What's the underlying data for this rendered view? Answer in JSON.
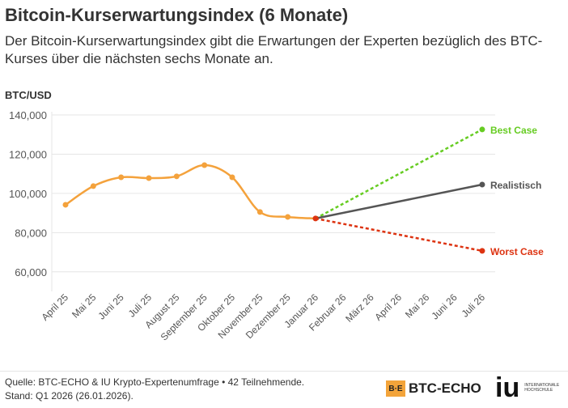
{
  "title": "Bitcoin-Kurserwartungsindex (6 Monate)",
  "subtitle": "Der Bitcoin-Kurserwartungsindex gibt die Erwartungen der Experten bezüglich des BTC-Kurses über die nächsten sechs Monate an.",
  "footer": {
    "source": "Quelle: BTC-ECHO & IU Krypto-Expertenumfrage • 42 Teilnehmende.",
    "date": "Stand: Q1 2026 (26.01.2026)."
  },
  "logos": {
    "btc_echo": "BTC-ECHO",
    "btc_mark": "B·E",
    "iu": "iu",
    "iu_text": "INTERNATIONALE HOCHSCHULE"
  },
  "chart_data": {
    "type": "line",
    "ylabel": "BTC/USD",
    "ylim": [
      50000,
      140000
    ],
    "yticks": [
      60000,
      80000,
      100000,
      120000,
      140000
    ],
    "ytick_labels": [
      "60,000",
      "80,000",
      "100,000",
      "120,000",
      "140,000"
    ],
    "grid": true,
    "categories": [
      "April 25",
      "Mai 25",
      "Juni 25",
      "Juli 25",
      "August 25",
      "September 25",
      "Oktober 25",
      "November 25",
      "Dezember 25",
      "Januar 26",
      "Februar 26",
      "März 26",
      "April 26",
      "Mai 26",
      "Juni 26",
      "Juli 26"
    ],
    "history": {
      "color": "#f4a23c",
      "values": [
        94200,
        103700,
        108200,
        107800,
        108700,
        114400,
        108200,
        90500,
        88000,
        87200
      ]
    },
    "scenarios": [
      {
        "name": "Best Case",
        "color": "#66cc22",
        "from": [
          "Januar 26",
          87200
        ],
        "to": [
          "Juli 26",
          132600
        ],
        "dashed": true
      },
      {
        "name": "Realistisch",
        "color": "#555555",
        "from": [
          "Januar 26",
          87200
        ],
        "to": [
          "Juli 26",
          104500
        ],
        "dashed": false
      },
      {
        "name": "Worst Case",
        "color": "#dd3311",
        "from": [
          "Januar 26",
          87200
        ],
        "to": [
          "Juli 26",
          70700
        ],
        "dashed": true
      }
    ]
  }
}
